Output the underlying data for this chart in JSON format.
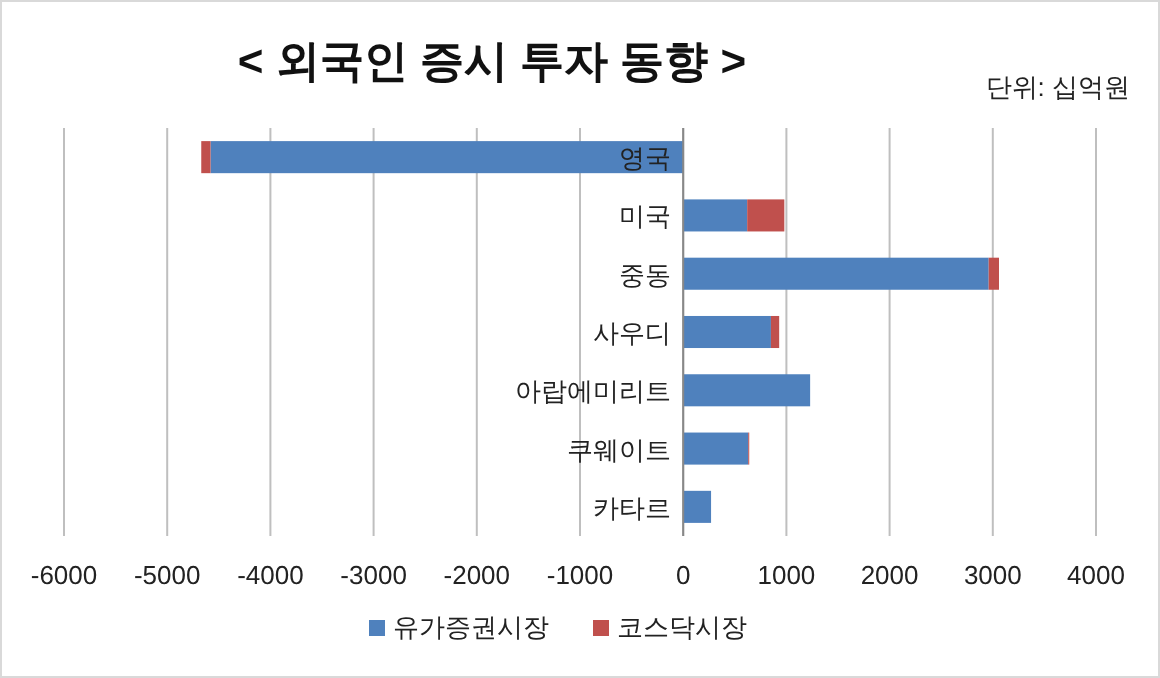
{
  "chart_data": {
    "type": "bar",
    "orientation": "horizontal",
    "stacked": true,
    "title": "< 외국인 증시 투자 동향 >",
    "annotations": [
      "단위: 십억원"
    ],
    "categories": [
      "영국",
      "미국",
      "중동",
      "사우디",
      "아랍에미리트",
      "쿠웨이트",
      "카타르"
    ],
    "series": [
      {
        "name": "유가증권시장",
        "color": "#4f81bd",
        "values": [
          -4580,
          620,
          2960,
          850,
          1230,
          630,
          270
        ]
      },
      {
        "name": "코스닥시장",
        "color": "#c0504d",
        "values": [
          -90,
          360,
          100,
          80,
          null,
          10,
          null
        ]
      }
    ],
    "xlim": [
      -6000,
      4000
    ],
    "xticks": [
      -6000,
      -5000,
      -4000,
      -3000,
      -2000,
      -1000,
      0,
      1000,
      2000,
      3000,
      4000
    ],
    "grid": "x",
    "legend": "bottom"
  }
}
